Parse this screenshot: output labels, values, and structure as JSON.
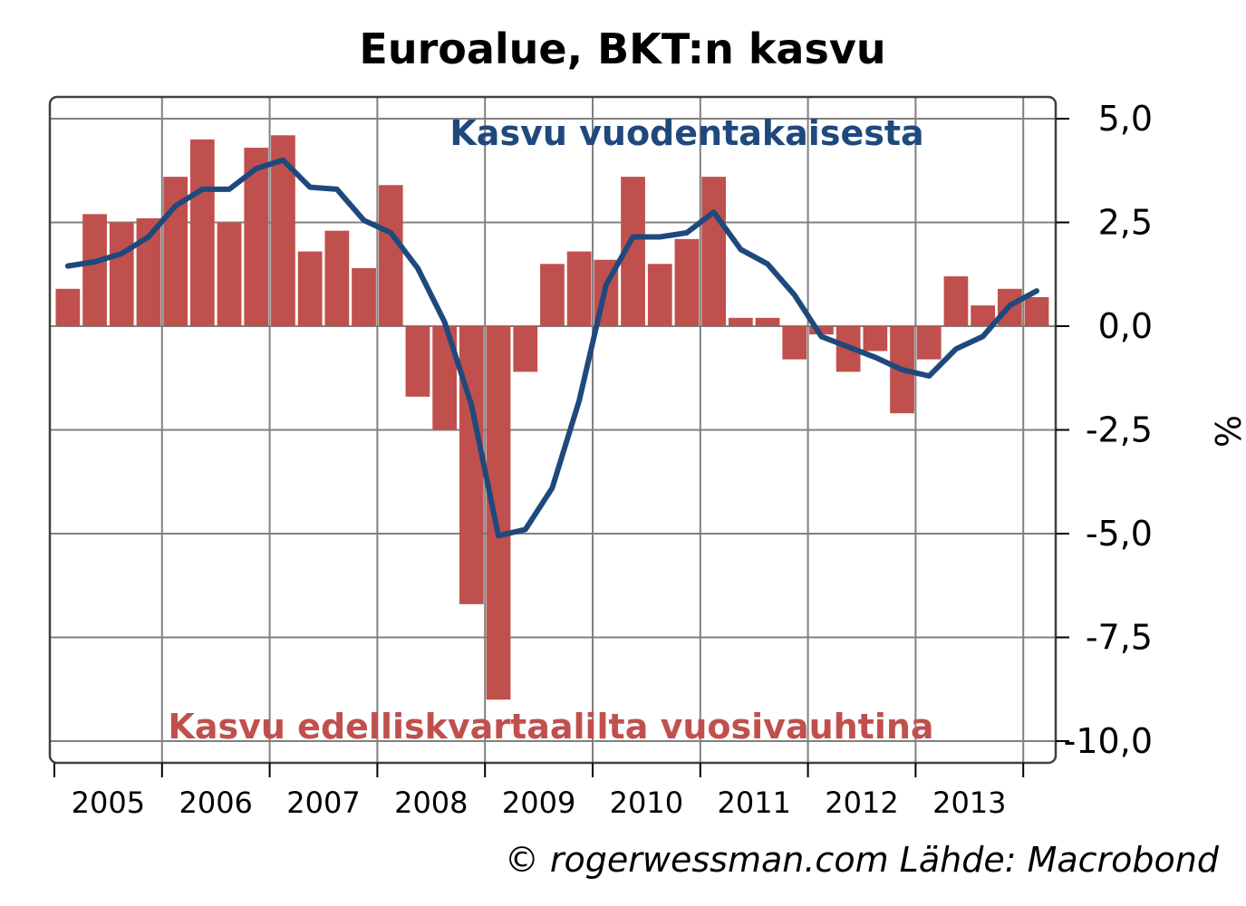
{
  "chart_data": {
    "type": "bar",
    "title": "Euroalue, BKT:n kasvu",
    "ylabel": "%",
    "ylim": [
      -10.5,
      5.4
    ],
    "yticks": [
      "5,0",
      "2,5",
      "0,0",
      "-2,5",
      "-5,0",
      "-7,5",
      "-10,0"
    ],
    "ytick_values": [
      5,
      2.5,
      0,
      -2.5,
      -5,
      -7.5,
      -10
    ],
    "xticks": [
      "2005",
      "2006",
      "2007",
      "2008",
      "2009",
      "2010",
      "2011",
      "2012",
      "2013"
    ],
    "quarters": [
      "2005Q1",
      "2005Q2",
      "2005Q3",
      "2005Q4",
      "2006Q1",
      "2006Q2",
      "2006Q3",
      "2006Q4",
      "2007Q1",
      "2007Q2",
      "2007Q3",
      "2007Q4",
      "2008Q1",
      "2008Q2",
      "2008Q3",
      "2008Q4",
      "2009Q1",
      "2009Q2",
      "2009Q3",
      "2009Q4",
      "2010Q1",
      "2010Q2",
      "2010Q3",
      "2010Q4",
      "2011Q1",
      "2011Q2",
      "2011Q3",
      "2011Q4",
      "2012Q1",
      "2012Q2",
      "2012Q3",
      "2012Q4",
      "2013Q1",
      "2013Q2",
      "2013Q3",
      "2013Q4",
      "2014Q1"
    ],
    "grid": true,
    "series": [
      {
        "name": "Kasvu edelliskvartaalilta vuosivauhtina",
        "type": "bar",
        "color": "#c0504d",
        "values": [
          0.9,
          2.7,
          2.5,
          2.6,
          3.6,
          4.5,
          2.5,
          4.3,
          4.6,
          1.8,
          2.3,
          1.4,
          3.4,
          -1.7,
          -2.5,
          -6.7,
          -9.0,
          -1.1,
          1.5,
          1.8,
          1.6,
          3.6,
          1.5,
          2.1,
          3.6,
          0.2,
          0.2,
          -0.8,
          -0.2,
          -1.1,
          -0.6,
          -2.1,
          -0.8,
          1.2,
          0.5,
          0.9,
          0.7
        ]
      },
      {
        "name": "Kasvu vuodentakaisesta",
        "type": "line",
        "color": "#1f497d",
        "values": [
          1.45,
          1.55,
          1.75,
          2.15,
          2.9,
          3.3,
          3.3,
          3.8,
          4.0,
          3.35,
          3.3,
          2.55,
          2.25,
          1.4,
          0.1,
          -1.9,
          -5.05,
          -4.9,
          -3.9,
          -1.8,
          1.0,
          2.15,
          2.15,
          2.25,
          2.75,
          1.85,
          1.5,
          0.75,
          -0.25,
          -0.5,
          -0.75,
          -1.05,
          -1.2,
          -0.55,
          -0.25,
          0.5,
          0.85
        ]
      }
    ],
    "annotations": {
      "line_label": "Kasvu vuodentakaisesta",
      "bar_label": "Kasvu edelliskvartaalilta vuosivauhtina"
    }
  },
  "source": "© rogerwessman.com Lähde: Macrobond",
  "colors": {
    "bars": "#c0504d",
    "line": "#1f497d",
    "grid": "#808080",
    "frame": "#404040"
  }
}
